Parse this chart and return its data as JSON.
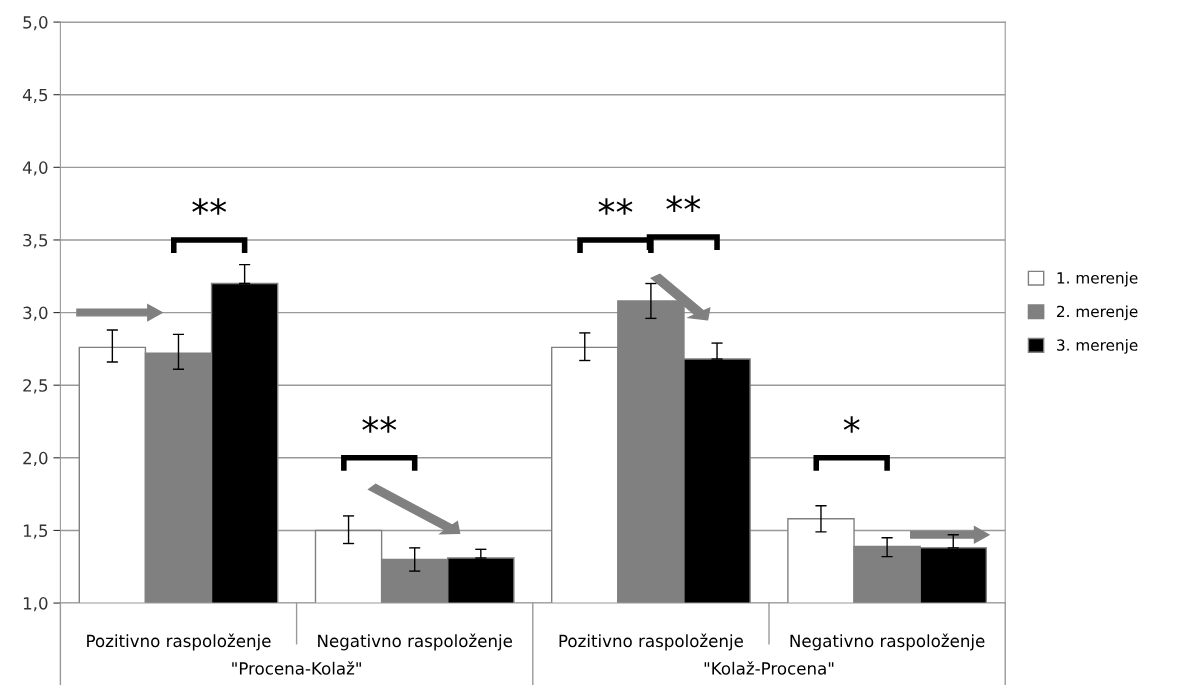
{
  "chart_data": {
    "type": "bar",
    "categories": [
      "Pozitivno raspoloženje",
      "Negativno raspoloženje",
      "Pozitivno raspoloženje",
      "Negativno raspoloženje"
    ],
    "series": [
      {
        "name": "1. merenje",
        "color": "#ffffff",
        "values": [
          2.76,
          1.5,
          2.76,
          1.58
        ],
        "errors": [
          [
            2.66,
            2.88
          ],
          [
            1.41,
            1.6
          ],
          [
            2.67,
            2.86
          ],
          [
            1.49,
            1.67
          ]
        ]
      },
      {
        "name": "2. merenje",
        "color": "#808080",
        "values": [
          2.72,
          1.3,
          3.08,
          1.39
        ],
        "errors": [
          [
            2.61,
            2.85
          ],
          [
            1.22,
            1.38
          ],
          [
            2.96,
            3.2
          ],
          [
            1.32,
            1.45
          ]
        ]
      },
      {
        "name": "3. merenje",
        "color": "#000000",
        "values": [
          3.2,
          1.31,
          2.68,
          1.38
        ],
        "errors": [
          [
            3.2,
            3.33
          ],
          [
            1.31,
            1.37
          ],
          [
            2.68,
            2.79
          ],
          [
            1.38,
            1.47
          ]
        ]
      }
    ],
    "ylim": [
      1.0,
      5.0
    ],
    "yticks": [
      {
        "value": 1.0,
        "label": "1,0"
      },
      {
        "value": 1.5,
        "label": "1,5"
      },
      {
        "value": 2.0,
        "label": "2,0"
      },
      {
        "value": 2.5,
        "label": "2,5"
      },
      {
        "value": 3.0,
        "label": "3,0"
      },
      {
        "value": 3.5,
        "label": "3,5"
      },
      {
        "value": 4.0,
        "label": "4,0"
      },
      {
        "value": 4.5,
        "label": "4,5"
      },
      {
        "value": 5.0,
        "label": "5,0"
      }
    ],
    "grid": "y",
    "legend": "right",
    "annotations": [
      "**",
      "**",
      "**",
      "**",
      "*",
      "\"Procena-Kolaž\"",
      "\"Kolaž-Procena\""
    ]
  }
}
